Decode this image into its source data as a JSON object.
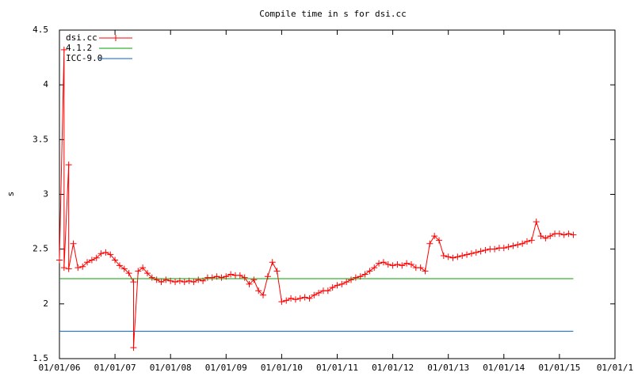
{
  "chart_data": {
    "type": "line",
    "title": "Compile time in s for dsi.cc",
    "y_label": "s",
    "xlim": [
      "2006-01",
      "2016-01"
    ],
    "xticks": [
      {
        "value": "2006-01",
        "label": "01/01/06"
      },
      {
        "value": "2007-01",
        "label": "01/01/07"
      },
      {
        "value": "2008-01",
        "label": "01/01/08"
      },
      {
        "value": "2009-01",
        "label": "01/01/09"
      },
      {
        "value": "2010-01",
        "label": "01/01/10"
      },
      {
        "value": "2011-01",
        "label": "01/01/11"
      },
      {
        "value": "2012-01",
        "label": "01/01/12"
      },
      {
        "value": "2013-01",
        "label": "01/01/13"
      },
      {
        "value": "2014-01",
        "label": "01/01/14"
      },
      {
        "value": "2015-01",
        "label": "01/01/15"
      },
      {
        "value": "2016-01",
        "label": "01/01/1"
      }
    ],
    "ylim": [
      1.5,
      4.5
    ],
    "yticks": [
      1.5,
      2,
      2.5,
      3,
      3.5,
      4,
      4.5
    ],
    "grid": false,
    "legend": "top-left",
    "series": [
      {
        "name": "dsi.cc",
        "color": "#ff0000",
        "marker": "+",
        "x": [
          "2006-01",
          "2006-02",
          "2006-02",
          "2006-03",
          "2006-03",
          "2006-04",
          "2006-05",
          "2006-06",
          "2006-07",
          "2006-08",
          "2006-09",
          "2006-10",
          "2006-11",
          "2006-12",
          "2007-01",
          "2007-02",
          "2007-03",
          "2007-04",
          "2007-05",
          "2007-05",
          "2007-06",
          "2007-07",
          "2007-08",
          "2007-09",
          "2007-10",
          "2007-11",
          "2007-12",
          "2008-01",
          "2008-02",
          "2008-03",
          "2008-04",
          "2008-05",
          "2008-06",
          "2008-07",
          "2008-08",
          "2008-09",
          "2008-10",
          "2008-11",
          "2008-12",
          "2009-01",
          "2009-02",
          "2009-03",
          "2009-04",
          "2009-05",
          "2009-06",
          "2009-07",
          "2009-08",
          "2009-09",
          "2009-10",
          "2009-11",
          "2009-12",
          "2010-01",
          "2010-02",
          "2010-03",
          "2010-04",
          "2010-05",
          "2010-06",
          "2010-07",
          "2010-08",
          "2010-09",
          "2010-10",
          "2010-11",
          "2010-12",
          "2011-01",
          "2011-02",
          "2011-03",
          "2011-04",
          "2011-05",
          "2011-06",
          "2011-07",
          "2011-08",
          "2011-09",
          "2011-10",
          "2011-11",
          "2011-12",
          "2012-01",
          "2012-02",
          "2012-03",
          "2012-04",
          "2012-05",
          "2012-06",
          "2012-07",
          "2012-08",
          "2012-09",
          "2012-10",
          "2012-11",
          "2012-12",
          "2013-01",
          "2013-02",
          "2013-03",
          "2013-04",
          "2013-05",
          "2013-06",
          "2013-07",
          "2013-08",
          "2013-09",
          "2013-10",
          "2013-11",
          "2013-12",
          "2014-01",
          "2014-02",
          "2014-03",
          "2014-04",
          "2014-05",
          "2014-06",
          "2014-07",
          "2014-08",
          "2014-09",
          "2014-10",
          "2014-11",
          "2014-12",
          "2015-01",
          "2015-02",
          "2015-03",
          "2015-04"
        ],
        "values": [
          2.4,
          4.32,
          2.33,
          3.27,
          2.32,
          2.55,
          2.33,
          2.34,
          2.38,
          2.4,
          2.42,
          2.46,
          2.47,
          2.45,
          2.4,
          2.35,
          2.32,
          2.28,
          2.2,
          1.6,
          2.3,
          2.33,
          2.28,
          2.24,
          2.22,
          2.2,
          2.22,
          2.21,
          2.2,
          2.21,
          2.2,
          2.21,
          2.2,
          2.22,
          2.21,
          2.24,
          2.24,
          2.25,
          2.24,
          2.25,
          2.27,
          2.26,
          2.26,
          2.24,
          2.18,
          2.22,
          2.12,
          2.08,
          2.25,
          2.38,
          2.3,
          2.02,
          2.03,
          2.05,
          2.04,
          2.05,
          2.06,
          2.05,
          2.08,
          2.1,
          2.12,
          2.12,
          2.15,
          2.17,
          2.18,
          2.2,
          2.22,
          2.24,
          2.25,
          2.27,
          2.3,
          2.33,
          2.37,
          2.38,
          2.36,
          2.35,
          2.36,
          2.35,
          2.37,
          2.36,
          2.33,
          2.33,
          2.3,
          2.55,
          2.62,
          2.58,
          2.44,
          2.43,
          2.42,
          2.43,
          2.44,
          2.45,
          2.46,
          2.47,
          2.48,
          2.49,
          2.5,
          2.5,
          2.51,
          2.51,
          2.52,
          2.53,
          2.54,
          2.55,
          2.57,
          2.58,
          2.75,
          2.62,
          2.6,
          2.62,
          2.64,
          2.64,
          2.63,
          2.64,
          2.63
        ]
      },
      {
        "name": "4.1.2",
        "color": "#00a000",
        "x": [
          "2006-01",
          "2015-04"
        ],
        "values": [
          2.23,
          2.23
        ]
      },
      {
        "name": "ICC-9.0",
        "color": "#0066cc",
        "x": [
          "2006-01",
          "2015-04"
        ],
        "values": [
          1.75,
          1.75
        ]
      }
    ]
  }
}
